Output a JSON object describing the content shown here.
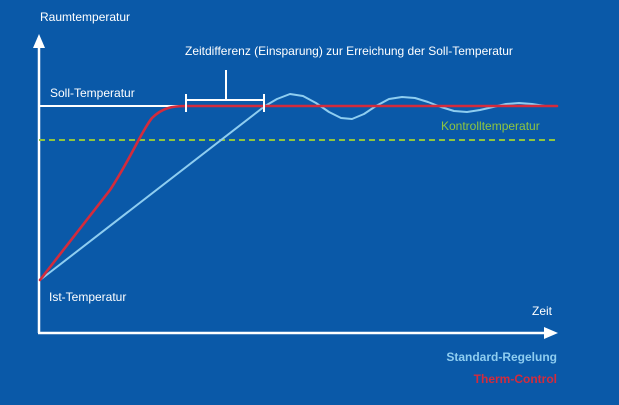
{
  "labels": {
    "y_axis": "Raumtemperatur",
    "x_axis": "Zeit",
    "setpoint": "Soll-Temperatur",
    "actual": "Ist-Temperatur",
    "control_temp": "Kontrolltemperatur",
    "time_difference": "Zeitdifferenz (Einsparung) zur Erreichung der Soll-Temperatur"
  },
  "legend": [
    {
      "label": "Standard-Regelung",
      "color": "#8ecdf0"
    },
    {
      "label": "Therm-Control",
      "color": "#d42b3c"
    }
  ],
  "colors": {
    "background": "#0a59a8",
    "axis": "#ffffff",
    "setpoint_line": "#ffffff",
    "control_line": "#8fc63f",
    "standard_curve": "#8ecdf0",
    "therm_curve": "#d42b3c"
  }
}
